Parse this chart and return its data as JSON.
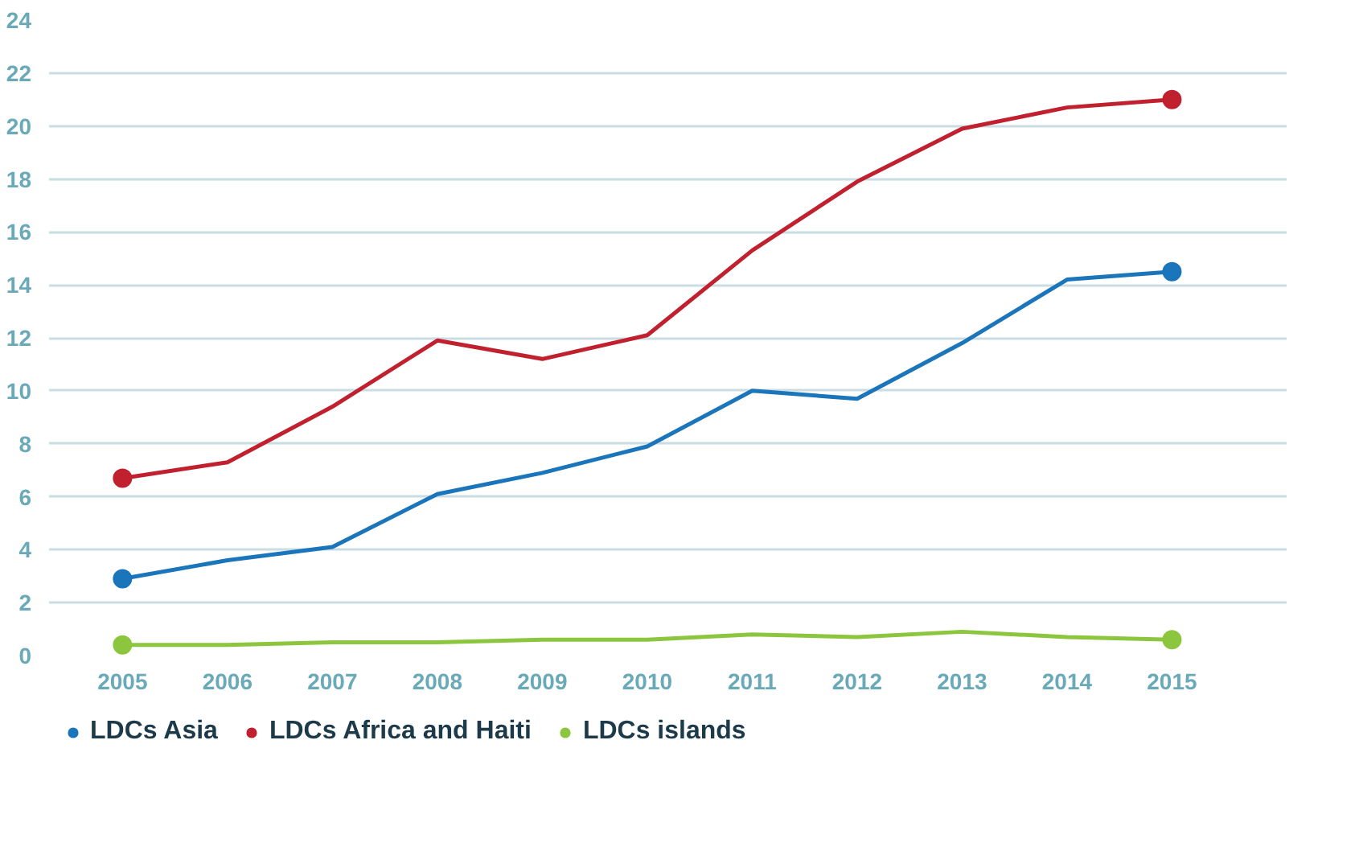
{
  "chart_data": {
    "type": "line",
    "x": [
      2005,
      2006,
      2007,
      2008,
      2009,
      2010,
      2011,
      2012,
      2013,
      2014,
      2015
    ],
    "series": [
      {
        "name": "LDCs Asia",
        "color": "#1a75bb",
        "values": [
          2.9,
          3.6,
          4.1,
          6.1,
          6.9,
          7.9,
          10.0,
          9.7,
          11.8,
          14.2,
          14.5
        ]
      },
      {
        "name": "LDCs Africa and Haiti",
        "color": "#c1202f",
        "values": [
          6.7,
          7.3,
          9.4,
          11.9,
          11.2,
          12.1,
          15.3,
          17.9,
          19.9,
          20.7,
          21.0
        ]
      },
      {
        "name": "LDCs islands",
        "color": "#8cc63f",
        "values": [
          0.4,
          0.4,
          0.5,
          0.5,
          0.6,
          0.6,
          0.8,
          0.7,
          0.9,
          0.7,
          0.6
        ]
      }
    ],
    "xlim": [
      2004.3,
      2016.1
    ],
    "xticks": [
      2005,
      2006,
      2007,
      2008,
      2009,
      2010,
      2011,
      2012,
      2013,
      2014,
      2015
    ],
    "ylim": [
      0,
      24
    ],
    "yticks": [
      0,
      2,
      4,
      6,
      8,
      10,
      12,
      14,
      16,
      18,
      20,
      22,
      24
    ],
    "grid": "y",
    "legend": "bottom",
    "line_style": "solid"
  }
}
